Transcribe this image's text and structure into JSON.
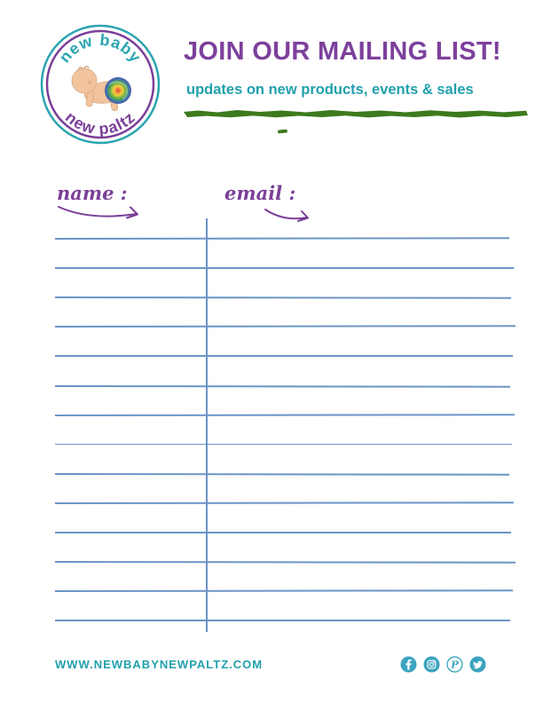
{
  "logo": {
    "arc_top": "new baby",
    "arc_bottom": "new paltz"
  },
  "header": {
    "title": "JOIN OUR MAILING LIST!",
    "subtitle": "updates on new products, events & sales"
  },
  "form": {
    "name_label": "name :",
    "email_label": "email :",
    "rows": 14,
    "columns": [
      "name",
      "email"
    ]
  },
  "footer": {
    "website": "WWW.NEWBABYNEWPALTZ.COM",
    "social_icons": [
      "facebook-icon",
      "instagram-icon",
      "pinterest-icon",
      "twitter-icon"
    ]
  },
  "colors": {
    "purple": "#7b3f98",
    "teal": "#21a0ac",
    "brush_green": "#3c7a1e",
    "line_blue": "#6b94c6",
    "social_teal": "#3ba4c0",
    "baby_skin": "#f1c49e",
    "tiedye": [
      "#e8433f",
      "#f3cf3b",
      "#58ab4a",
      "#3b6fb3",
      "#7b3f98"
    ]
  }
}
